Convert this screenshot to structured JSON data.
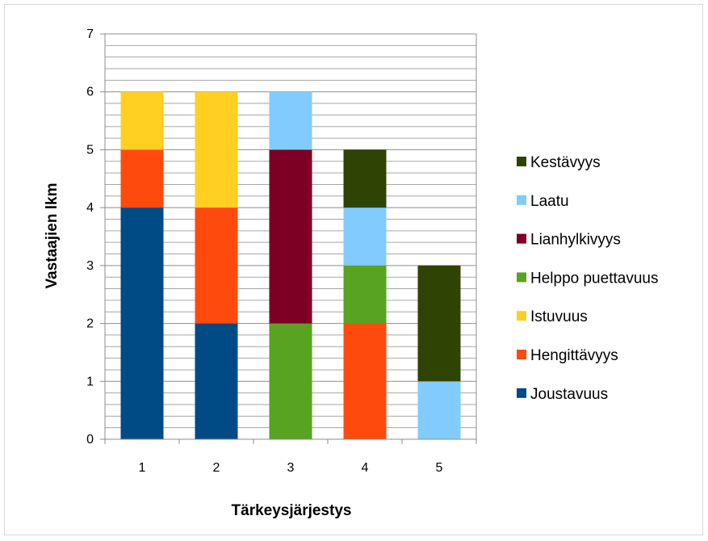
{
  "chart_data": {
    "type": "bar",
    "stacked": true,
    "title": "",
    "xlabel": "Tärkeysjärjestys",
    "ylabel": "Vastaajien lkm",
    "categories": [
      "1",
      "2",
      "3",
      "4",
      "5"
    ],
    "ylim": [
      0,
      7
    ],
    "yticks": [
      "0",
      "1",
      "2",
      "3",
      "4",
      "5",
      "6",
      "7"
    ],
    "ytick_step": 1,
    "minor_grid_step": 0.2,
    "grid": true,
    "legend_position": "right",
    "series": [
      {
        "name": "Joustavuus",
        "color": "#004a86",
        "values": [
          4,
          2,
          0,
          0,
          0
        ]
      },
      {
        "name": "Hengittävyys",
        "color": "#ff4a0e",
        "values": [
          1,
          2,
          0,
          2,
          0
        ]
      },
      {
        "name": "Istuvuus",
        "color": "#ffcf21",
        "values": [
          1,
          2,
          0,
          0,
          0
        ]
      },
      {
        "name": "Helppo puettavuus",
        "color": "#58a321",
        "values": [
          0,
          0,
          2,
          1,
          0
        ]
      },
      {
        "name": "Lianhylkivyys",
        "color": "#7d0024",
        "values": [
          0,
          0,
          3,
          0,
          0
        ]
      },
      {
        "name": "Laatu",
        "color": "#82cbff",
        "values": [
          0,
          0,
          1,
          1,
          1
        ]
      },
      {
        "name": "Kestävyys",
        "color": "#2f4304",
        "values": [
          0,
          0,
          0,
          1,
          2
        ]
      }
    ],
    "legend_order": [
      "Kestävyys",
      "Laatu",
      "Lianhylkivyys",
      "Helppo puettavuus",
      "Istuvuus",
      "Hengittävyys",
      "Joustavuus"
    ]
  }
}
